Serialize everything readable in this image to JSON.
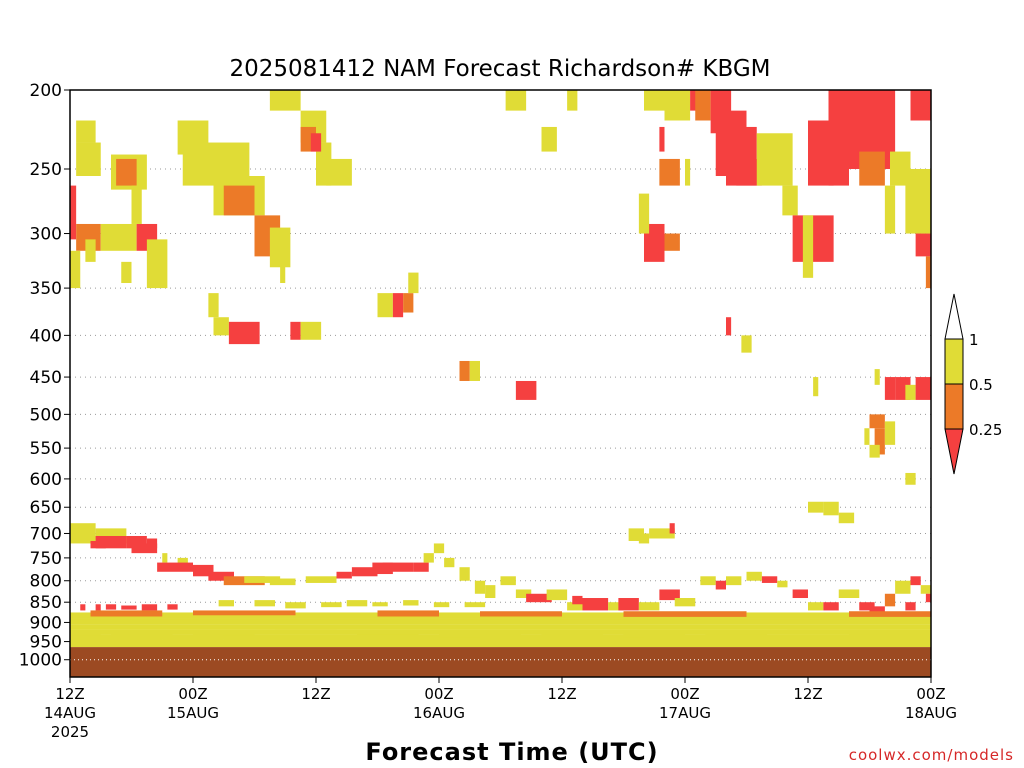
{
  "chart_data": {
    "type": "heatmap",
    "title": "2025081412 NAM Forecast Richardson# KBGM",
    "xlabel": "Forecast Time (UTC)",
    "ylabel": "",
    "y_axis": {
      "unit": "hPa",
      "scale": "log",
      "range": [
        200,
        1050
      ],
      "ticks": [
        "200",
        "250",
        "300",
        "350",
        "400",
        "450",
        "500",
        "550",
        "600",
        "650",
        "700",
        "750",
        "800",
        "850",
        "900",
        "950",
        "1000"
      ]
    },
    "x_axis": {
      "unit": "hours",
      "range": [
        0,
        84
      ],
      "ticks": [
        {
          "hour": 0,
          "lines": [
            "12Z",
            "14AUG",
            "2025"
          ]
        },
        {
          "hour": 12,
          "lines": [
            "00Z",
            "15AUG"
          ]
        },
        {
          "hour": 24,
          "lines": [
            "12Z"
          ]
        },
        {
          "hour": 36,
          "lines": [
            "00Z",
            "16AUG"
          ]
        },
        {
          "hour": 48,
          "lines": [
            "12Z"
          ]
        },
        {
          "hour": 60,
          "lines": [
            "00Z",
            "17AUG"
          ]
        },
        {
          "hour": 72,
          "lines": [
            "12Z"
          ]
        },
        {
          "hour": 84,
          "lines": [
            "00Z",
            "18AUG"
          ]
        }
      ]
    },
    "grid": "dotted horizontal at pressure ticks",
    "surface_fill": {
      "color": "#9c4a22",
      "p_top": 965
    },
    "categories": [
      {
        "range": "<0.25",
        "color": "#f54040"
      },
      {
        "range": "0.25-0.5",
        "color": "#ec7a28"
      },
      {
        "range": "0.5-1",
        "color": "#e0dc36"
      }
    ],
    "colorbar": {
      "labels": [
        "1",
        "0.5",
        "0.25"
      ],
      "colors": [
        "#e0dc36",
        "#ec7a28",
        "#f54040"
      ]
    },
    "features_note": "cells: [hour_start, hour_end, p_top, p_bottom, category]",
    "cells": [
      [
        0.6,
        2.5,
        218,
        232,
        3
      ],
      [
        0.6,
        3.0,
        232,
        255,
        3
      ],
      [
        4.0,
        7.5,
        240,
        265,
        3
      ],
      [
        4.5,
        6.5,
        243,
        262,
        2
      ],
      [
        0.0,
        0.6,
        262,
        305,
        1
      ],
      [
        0.6,
        3.0,
        292,
        315,
        2
      ],
      [
        3.0,
        6.5,
        292,
        315,
        3
      ],
      [
        6.5,
        8.5,
        292,
        315,
        1
      ],
      [
        0.0,
        1.0,
        315,
        350,
        3
      ],
      [
        1.5,
        2.5,
        305,
        325,
        3
      ],
      [
        5.0,
        6.0,
        325,
        345,
        3
      ],
      [
        7.5,
        9.5,
        305,
        350,
        3
      ],
      [
        6.0,
        7.0,
        262,
        292,
        3
      ],
      [
        10.5,
        13.5,
        218,
        240,
        3
      ],
      [
        11.0,
        17.5,
        232,
        262,
        3
      ],
      [
        14.0,
        19.0,
        255,
        285,
        3
      ],
      [
        15.0,
        18.0,
        262,
        285,
        2
      ],
      [
        18.0,
        20.5,
        285,
        320,
        2
      ],
      [
        19.5,
        21.5,
        295,
        330,
        3
      ],
      [
        20.5,
        21.0,
        300,
        345,
        3
      ],
      [
        19.5,
        22.5,
        200,
        212,
        3
      ],
      [
        22.5,
        25.0,
        212,
        232,
        3
      ],
      [
        22.5,
        24.0,
        222,
        238,
        2
      ],
      [
        24.0,
        25.5,
        232,
        262,
        3
      ],
      [
        25.0,
        27.5,
        243,
        262,
        3
      ],
      [
        23.5,
        24.5,
        226,
        238,
        1
      ],
      [
        13.5,
        14.5,
        355,
        380,
        3
      ],
      [
        14.0,
        15.5,
        380,
        400,
        3
      ],
      [
        15.5,
        18.5,
        385,
        410,
        1
      ],
      [
        21.5,
        22.5,
        385,
        405,
        1
      ],
      [
        22.5,
        24.5,
        385,
        405,
        3
      ],
      [
        30.0,
        31.5,
        355,
        380,
        3
      ],
      [
        31.5,
        32.5,
        355,
        380,
        1
      ],
      [
        32.5,
        33.5,
        355,
        375,
        2
      ],
      [
        33.0,
        34.0,
        335,
        355,
        3
      ],
      [
        38.0,
        39.0,
        430,
        455,
        2
      ],
      [
        39.0,
        40.0,
        430,
        455,
        3
      ],
      [
        43.5,
        45.5,
        455,
        480,
        1
      ],
      [
        42.5,
        44.5,
        200,
        212,
        3
      ],
      [
        46.0,
        47.5,
        222,
        238,
        3
      ],
      [
        48.5,
        49.5,
        200,
        212,
        3
      ],
      [
        56.0,
        58.5,
        200,
        212,
        3
      ],
      [
        57.5,
        58.0,
        222,
        238,
        1
      ],
      [
        57.5,
        59.5,
        243,
        262,
        2
      ],
      [
        60.0,
        60.5,
        243,
        262,
        3
      ],
      [
        58.0,
        60.5,
        200,
        218,
        3
      ],
      [
        60.5,
        61.5,
        200,
        212,
        1
      ],
      [
        61.0,
        62.5,
        200,
        218,
        2
      ],
      [
        56.0,
        58.0,
        292,
        325,
        1
      ],
      [
        56.5,
        58.0,
        295,
        310,
        1
      ],
      [
        58.0,
        59.5,
        300,
        315,
        2
      ],
      [
        55.5,
        56.5,
        268,
        300,
        3
      ],
      [
        62.5,
        64.5,
        200,
        226,
        1
      ],
      [
        63.0,
        66.0,
        212,
        255,
        1
      ],
      [
        64.0,
        67.0,
        222,
        262,
        1
      ],
      [
        65.0,
        67.5,
        243,
        262,
        1
      ],
      [
        67.0,
        70.5,
        226,
        262,
        3
      ],
      [
        69.5,
        71.0,
        262,
        285,
        3
      ],
      [
        70.5,
        74.5,
        285,
        325,
        1
      ],
      [
        71.5,
        72.5,
        285,
        340,
        3
      ],
      [
        72.0,
        74.5,
        218,
        262,
        1
      ],
      [
        74.0,
        76.0,
        200,
        262,
        1
      ],
      [
        76.0,
        80.5,
        200,
        250,
        1
      ],
      [
        77.0,
        79.5,
        238,
        262,
        2
      ],
      [
        80.0,
        82.0,
        238,
        262,
        3
      ],
      [
        82.0,
        84.0,
        200,
        218,
        1
      ],
      [
        81.5,
        84.0,
        250,
        300,
        3
      ],
      [
        82.5,
        84.0,
        300,
        320,
        1
      ],
      [
        83.5,
        84.0,
        320,
        350,
        2
      ],
      [
        83.0,
        84.0,
        285,
        300,
        3
      ],
      [
        79.5,
        80.5,
        262,
        300,
        3
      ],
      [
        64.0,
        64.5,
        380,
        400,
        1
      ],
      [
        65.5,
        66.5,
        400,
        420,
        3
      ],
      [
        72.5,
        73.0,
        450,
        475,
        3
      ],
      [
        78.5,
        79.0,
        440,
        460,
        3
      ],
      [
        79.5,
        80.5,
        450,
        480,
        1
      ],
      [
        80.5,
        82.0,
        450,
        480,
        1
      ],
      [
        81.5,
        82.5,
        460,
        480,
        3
      ],
      [
        82.5,
        84.0,
        450,
        480,
        1
      ],
      [
        78.0,
        79.5,
        500,
        520,
        2
      ],
      [
        77.5,
        78.0,
        520,
        545,
        3
      ],
      [
        78.5,
        79.5,
        520,
        560,
        2
      ],
      [
        79.5,
        80.5,
        510,
        545,
        3
      ],
      [
        78.0,
        79.0,
        545,
        565,
        3
      ],
      [
        81.5,
        82.5,
        590,
        610,
        3
      ],
      [
        72.0,
        73.5,
        640,
        660,
        3
      ],
      [
        73.5,
        75.0,
        640,
        665,
        3
      ],
      [
        75.0,
        76.5,
        660,
        680,
        3
      ],
      [
        56.5,
        58.0,
        690,
        710,
        3
      ],
      [
        58.0,
        59.0,
        690,
        710,
        3
      ],
      [
        58.5,
        59.0,
        680,
        700,
        1
      ],
      [
        54.5,
        56.0,
        690,
        715,
        3
      ],
      [
        55.5,
        56.5,
        700,
        720,
        3
      ],
      [
        0.0,
        2.5,
        680,
        720,
        3
      ],
      [
        2.5,
        5.5,
        690,
        720,
        3
      ],
      [
        2.5,
        5.5,
        705,
        730,
        1
      ],
      [
        5.5,
        7.5,
        705,
        730,
        1
      ],
      [
        7.5,
        8.5,
        710,
        730,
        1
      ],
      [
        2.0,
        3.5,
        715,
        730,
        1
      ],
      [
        0.0,
        2.0,
        700,
        715,
        3
      ],
      [
        6.0,
        8.5,
        720,
        740,
        1
      ],
      [
        9.0,
        9.5,
        740,
        760,
        3
      ],
      [
        10.5,
        11.5,
        750,
        770,
        3
      ],
      [
        8.5,
        12.0,
        760,
        780,
        1
      ],
      [
        12.0,
        14.0,
        765,
        790,
        1
      ],
      [
        13.5,
        16.0,
        780,
        800,
        1
      ],
      [
        15.0,
        19.0,
        790,
        810,
        2
      ],
      [
        17.0,
        20.5,
        790,
        805,
        3
      ],
      [
        19.5,
        22.0,
        795,
        810,
        3
      ],
      [
        23.0,
        26.0,
        790,
        805,
        3
      ],
      [
        26.0,
        27.5,
        780,
        795,
        1
      ],
      [
        27.5,
        30.0,
        770,
        790,
        1
      ],
      [
        29.5,
        31.5,
        760,
        785,
        1
      ],
      [
        30.5,
        33.5,
        760,
        780,
        1
      ],
      [
        33.5,
        35.0,
        760,
        780,
        1
      ],
      [
        34.5,
        35.5,
        740,
        760,
        3
      ],
      [
        35.5,
        36.5,
        720,
        740,
        3
      ],
      [
        36.5,
        37.5,
        750,
        770,
        3
      ],
      [
        38.0,
        39.0,
        770,
        800,
        3
      ],
      [
        39.5,
        40.5,
        800,
        830,
        3
      ],
      [
        40.5,
        41.5,
        810,
        840,
        3
      ],
      [
        42.0,
        43.5,
        790,
        810,
        3
      ],
      [
        43.5,
        45.0,
        820,
        840,
        3
      ],
      [
        44.5,
        47.0,
        830,
        850,
        1
      ],
      [
        46.5,
        48.5,
        820,
        845,
        3
      ],
      [
        48.5,
        50.0,
        850,
        870,
        3
      ],
      [
        49.0,
        50.0,
        835,
        855,
        1
      ],
      [
        50.0,
        52.5,
        840,
        870,
        1
      ],
      [
        52.5,
        54.0,
        850,
        870,
        3
      ],
      [
        53.5,
        55.5,
        840,
        870,
        1
      ],
      [
        55.5,
        57.5,
        850,
        870,
        3
      ],
      [
        57.5,
        59.5,
        820,
        845,
        1
      ],
      [
        59.0,
        61.0,
        840,
        860,
        3
      ],
      [
        61.5,
        63.0,
        790,
        810,
        3
      ],
      [
        63.0,
        64.0,
        800,
        820,
        1
      ],
      [
        64.0,
        65.5,
        790,
        810,
        3
      ],
      [
        66.0,
        67.5,
        780,
        800,
        3
      ],
      [
        67.5,
        69.0,
        790,
        805,
        1
      ],
      [
        69.0,
        70.0,
        800,
        815,
        3
      ],
      [
        70.5,
        72.0,
        820,
        840,
        1
      ],
      [
        72.0,
        73.5,
        850,
        870,
        3
      ],
      [
        73.5,
        75.0,
        850,
        870,
        1
      ],
      [
        75.0,
        77.0,
        820,
        840,
        3
      ],
      [
        77.0,
        78.5,
        850,
        870,
        1
      ],
      [
        78.0,
        79.5,
        860,
        880,
        1
      ],
      [
        79.5,
        80.5,
        830,
        860,
        2
      ],
      [
        80.5,
        82.0,
        800,
        830,
        3
      ],
      [
        82.0,
        83.0,
        790,
        810,
        1
      ],
      [
        83.0,
        84.0,
        810,
        830,
        3
      ],
      [
        83.5,
        84.0,
        830,
        850,
        1
      ],
      [
        81.5,
        82.5,
        850,
        870,
        1
      ],
      [
        14.5,
        16.0,
        845,
        860,
        3
      ],
      [
        18.0,
        20.0,
        845,
        860,
        3
      ],
      [
        21.0,
        23.0,
        850,
        865,
        3
      ],
      [
        24.5,
        26.5,
        850,
        862,
        3
      ],
      [
        27.0,
        29.0,
        845,
        860,
        3
      ],
      [
        29.5,
        31.0,
        850,
        860,
        3
      ],
      [
        32.5,
        34.0,
        845,
        858,
        3
      ],
      [
        35.5,
        37.0,
        850,
        862,
        3
      ],
      [
        38.5,
        40.5,
        850,
        862,
        3
      ],
      [
        1.0,
        1.5,
        855,
        870,
        1
      ],
      [
        2.5,
        3.0,
        855,
        870,
        1
      ],
      [
        3.5,
        4.5,
        855,
        868,
        1
      ],
      [
        5.0,
        6.5,
        858,
        868,
        1
      ],
      [
        7.0,
        8.5,
        855,
        870,
        1
      ],
      [
        9.5,
        10.5,
        855,
        868,
        1
      ],
      [
        0.0,
        84.0,
        875,
        890,
        3
      ],
      [
        0.0,
        84.0,
        890,
        905,
        3
      ],
      [
        0.0,
        84.0,
        905,
        918,
        3
      ],
      [
        2.0,
        9.0,
        870,
        885,
        2
      ],
      [
        12.0,
        22.0,
        870,
        882,
        2
      ],
      [
        30.0,
        36.0,
        870,
        885,
        2
      ],
      [
        40.0,
        48.0,
        872,
        885,
        2
      ],
      [
        54.0,
        66.0,
        872,
        886,
        2
      ],
      [
        76.0,
        84.0,
        872,
        886,
        2
      ],
      [
        0.0,
        84.0,
        918,
        930,
        3
      ],
      [
        0.0,
        84.0,
        930,
        945,
        3
      ],
      [
        0.0,
        84.0,
        945,
        965,
        3
      ],
      [
        0.0,
        3.0,
        925,
        935,
        3
      ],
      [
        5.0,
        10.0,
        920,
        932,
        3
      ],
      [
        12.0,
        18.0,
        922,
        935,
        3
      ],
      [
        20.0,
        26.0,
        918,
        930,
        3
      ],
      [
        28.0,
        34.0,
        920,
        932,
        3
      ],
      [
        36.0,
        44.0,
        925,
        938,
        3
      ],
      [
        46.0,
        52.0,
        920,
        932,
        3
      ],
      [
        54.0,
        60.0,
        925,
        938,
        3
      ],
      [
        62.0,
        68.0,
        922,
        935,
        3
      ],
      [
        70.0,
        78.0,
        918,
        930,
        3
      ],
      [
        80.0,
        84.0,
        920,
        932,
        3
      ],
      [
        0.0,
        4.0,
        935,
        965,
        3
      ],
      [
        4.0,
        9.0,
        930,
        965,
        3
      ],
      [
        9.0,
        15.0,
        938,
        965,
        3
      ],
      [
        15.0,
        22.0,
        935,
        965,
        3
      ],
      [
        22.0,
        28.0,
        940,
        965,
        3
      ],
      [
        28.0,
        34.0,
        932,
        965,
        3
      ],
      [
        34.0,
        40.0,
        940,
        965,
        3
      ],
      [
        40.0,
        48.0,
        935,
        965,
        3
      ],
      [
        48.0,
        56.0,
        940,
        965,
        3
      ],
      [
        56.0,
        62.0,
        935,
        965,
        3
      ],
      [
        62.0,
        70.0,
        938,
        965,
        3
      ],
      [
        70.0,
        76.0,
        932,
        965,
        3
      ],
      [
        76.0,
        84.0,
        928,
        965,
        3
      ]
    ]
  },
  "colorbar_labels": {
    "l1": "1",
    "l2": "0.5",
    "l3": "0.25"
  },
  "footer": {
    "credit": "coolwx.com/models"
  }
}
